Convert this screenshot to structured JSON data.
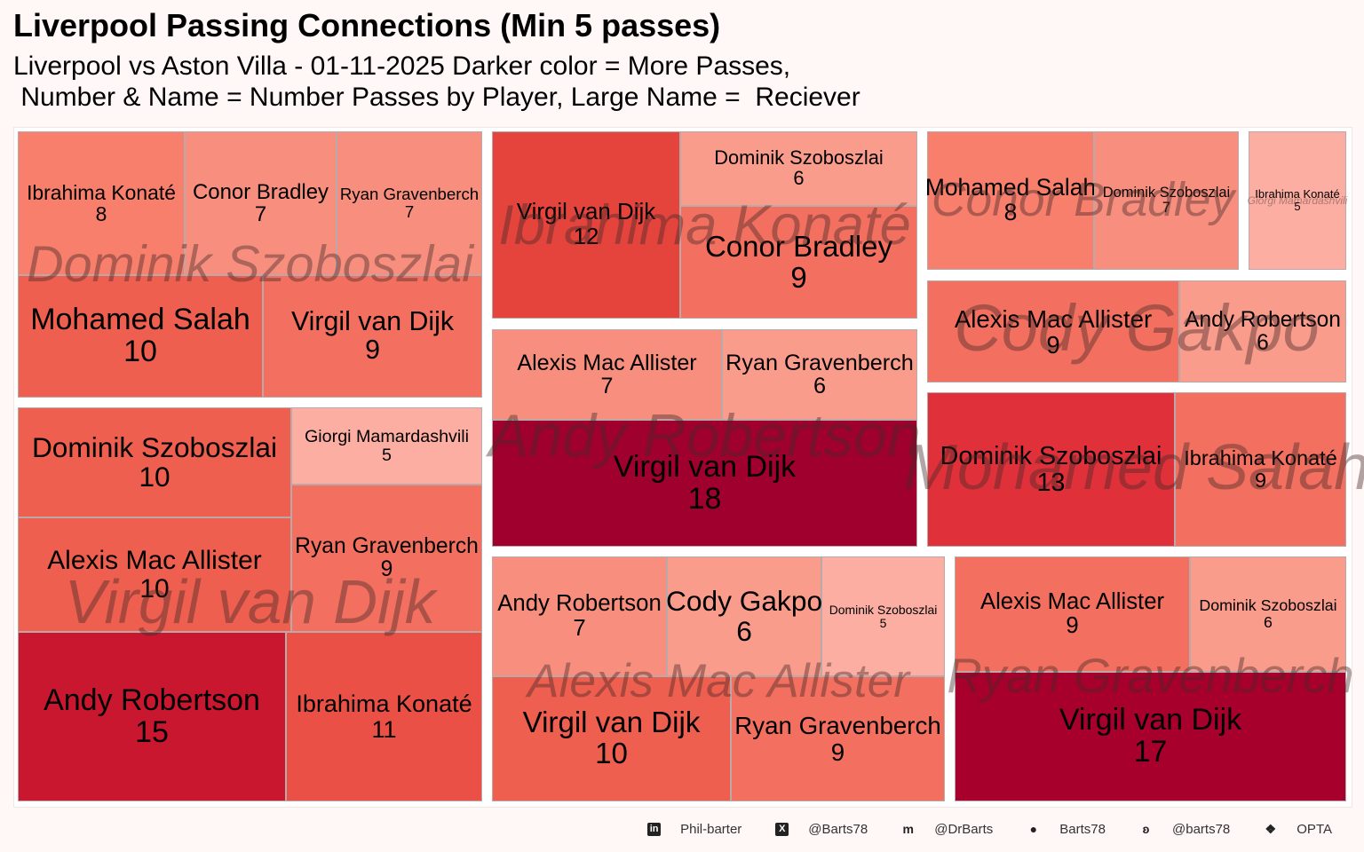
{
  "title": "Liverpool Passing Connections (Min 5 passes)",
  "subtitle_line1": "Liverpool vs Aston Villa - 01-11-2025 Darker color = More Passes,",
  "subtitle_line2": " Number & Name = Number Passes by Player, Large Name =  Reciever",
  "chart_data": {
    "type": "treemap",
    "groups": [
      {
        "receiver": "Dominik Szoboszlai",
        "passers": [
          {
            "name": "Ibrahima Konaté",
            "passes": 8
          },
          {
            "name": "Conor Bradley",
            "passes": 7
          },
          {
            "name": "Ryan Gravenberch",
            "passes": 7
          },
          {
            "name": "Mohamed Salah",
            "passes": 10
          },
          {
            "name": "Virgil van Dijk",
            "passes": 9
          }
        ]
      },
      {
        "receiver": "Virgil van Dijk",
        "passers": [
          {
            "name": "Dominik Szoboszlai",
            "passes": 10
          },
          {
            "name": "Giorgi Mamardashvili",
            "passes": 5
          },
          {
            "name": "Alexis Mac Allister",
            "passes": 10
          },
          {
            "name": "Ryan Gravenberch",
            "passes": 9
          },
          {
            "name": "Andy Robertson",
            "passes": 15
          },
          {
            "name": "Ibrahima Konaté",
            "passes": 11
          }
        ]
      },
      {
        "receiver": "Ibrahima Konaté",
        "passers": [
          {
            "name": "Virgil van Dijk",
            "passes": 12
          },
          {
            "name": "Dominik Szoboszlai",
            "passes": 6
          },
          {
            "name": "Conor Bradley",
            "passes": 9
          }
        ]
      },
      {
        "receiver": "Andy Robertson",
        "passers": [
          {
            "name": "Alexis Mac Allister",
            "passes": 7
          },
          {
            "name": "Ryan Gravenberch",
            "passes": 6
          },
          {
            "name": "Virgil van Dijk",
            "passes": 18
          }
        ]
      },
      {
        "receiver": "Alexis Mac Allister",
        "passers": [
          {
            "name": "Andy Robertson",
            "passes": 7
          },
          {
            "name": "Cody Gakpo",
            "passes": 6
          },
          {
            "name": "Dominik Szoboszlai",
            "passes": 5
          },
          {
            "name": "Virgil van Dijk",
            "passes": 10
          },
          {
            "name": "Ryan Gravenberch",
            "passes": 9
          }
        ]
      },
      {
        "receiver": "Conor Bradley",
        "passers": [
          {
            "name": "Mohamed Salah",
            "passes": 8
          },
          {
            "name": "Dominik Szoboszlai",
            "passes": 7
          }
        ]
      },
      {
        "receiver": "Giorgi Mamardashvili",
        "passers": [
          {
            "name": "Ibrahima Konaté",
            "passes": 5
          }
        ]
      },
      {
        "receiver": "Cody Gakpo",
        "passers": [
          {
            "name": "Alexis Mac Allister",
            "passes": 9
          },
          {
            "name": "Andy Robertson",
            "passes": 6
          }
        ]
      },
      {
        "receiver": "Mohamed Salah",
        "passers": [
          {
            "name": "Dominik Szoboszlai",
            "passes": 13
          },
          {
            "name": "Ibrahima Konaté",
            "passes": 9
          }
        ]
      },
      {
        "receiver": "Ryan Gravenberch",
        "passers": [
          {
            "name": "Alexis Mac Allister",
            "passes": 9
          },
          {
            "name": "Dominik Szoboszlai",
            "passes": 6
          },
          {
            "name": "Virgil van Dijk",
            "passes": 17
          }
        ]
      }
    ],
    "color_scale": {
      "low": "#fcb1a5",
      "high": "#a0002d"
    }
  },
  "footer": [
    {
      "icon": "linkedin-icon",
      "text": "Phil-barter"
    },
    {
      "icon": "x-icon",
      "text": "@Barts78"
    },
    {
      "icon": "mastodon-icon",
      "text": "@DrBarts"
    },
    {
      "icon": "github-icon",
      "text": "Barts78"
    },
    {
      "icon": "bluesky-icon",
      "text": "@barts78"
    },
    {
      "icon": "dropbox-icon",
      "text": "OPTA"
    }
  ]
}
